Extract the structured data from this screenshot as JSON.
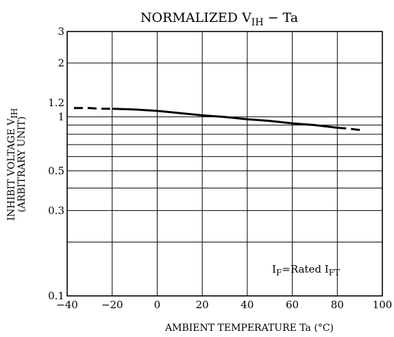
{
  "chart_data": {
    "type": "line",
    "title": {
      "main": "NORMALIZED V",
      "sub": "IH",
      "tail": " − Ta"
    },
    "xlabel": "AMBIENT TEMPERATURE   Ta   (°C)",
    "ylabel": {
      "line1_main": "INHIBIT VOLTAGE   V",
      "line1_sub": "IH",
      "line2": "(ARBITRARY UNIT)"
    },
    "xlim": [
      -40,
      100
    ],
    "ylim": [
      0.1,
      3
    ],
    "yscale": "log",
    "grid": true,
    "x_ticks": [
      -40,
      -20,
      0,
      20,
      40,
      60,
      80,
      100
    ],
    "x_tick_labels": [
      "−40",
      "−20",
      "0",
      "20",
      "40",
      "60",
      "80",
      "100"
    ],
    "y_ticks": [
      0.1,
      0.3,
      0.5,
      1,
      1.2,
      2,
      3
    ],
    "y_tick_labels": [
      "0.1",
      "0.3",
      "0.5",
      "1",
      "1.2",
      "2",
      "3"
    ],
    "y_gridlines": [
      0.1,
      0.2,
      0.3,
      0.4,
      0.5,
      0.6,
      0.7,
      0.8,
      0.9,
      1,
      2,
      3
    ],
    "annotation": {
      "main1": "I",
      "sub1": "F",
      "mid": "=Rated I",
      "sub2": "FT"
    },
    "series": [
      {
        "style": "dashed",
        "x": [
          -37,
          -35,
          -30,
          -25,
          -20
        ],
        "y": [
          1.12,
          1.12,
          1.12,
          1.11,
          1.11
        ]
      },
      {
        "style": "solid",
        "x": [
          -20,
          -10,
          0,
          10,
          20,
          30,
          40,
          50,
          60,
          70,
          80
        ],
        "y": [
          1.11,
          1.1,
          1.08,
          1.05,
          1.02,
          1.0,
          0.97,
          0.95,
          0.92,
          0.9,
          0.87
        ]
      },
      {
        "style": "dashed",
        "x": [
          80,
          85,
          92
        ],
        "y": [
          0.87,
          0.86,
          0.84
        ]
      }
    ]
  }
}
